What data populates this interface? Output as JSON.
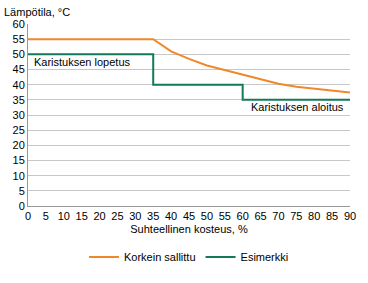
{
  "chart_data": {
    "type": "line",
    "x_label": "Suhteellinen kosteus, %",
    "y_label": "Lämpötila, °C",
    "series": [
      {
        "name": "Korkein sallittu",
        "color": "#f0882a",
        "line_style": "solid",
        "x": [
          0,
          5,
          10,
          15,
          20,
          25,
          30,
          35,
          40,
          45,
          50,
          55,
          60,
          65,
          70,
          75,
          80,
          85,
          90
        ],
        "values": [
          55,
          55,
          55,
          55,
          55,
          55,
          55,
          55,
          51,
          48.5,
          46.3,
          44.8,
          43.2,
          41.8,
          40.3,
          39.3,
          38.6,
          38,
          37.4
        ]
      },
      {
        "name": "Esimerkki",
        "color": "#13795b",
        "line_style": "solid",
        "x": [
          0,
          35,
          35,
          60,
          60,
          90
        ],
        "values": [
          50,
          50,
          40,
          40,
          35,
          35
        ]
      }
    ],
    "annotations": [
      {
        "text": "Karistuksen lopetus",
        "x": 1,
        "y": 47.5
      },
      {
        "text": "Karistuksen aloitus",
        "x": 89,
        "y": 32.5
      }
    ],
    "xlim": [
      0,
      90
    ],
    "xticks": [
      0,
      5,
      10,
      15,
      20,
      25,
      30,
      35,
      40,
      45,
      50,
      55,
      60,
      65,
      70,
      75,
      80,
      85,
      90
    ],
    "ylim": [
      0,
      60
    ],
    "yticks": [
      0,
      5,
      10,
      15,
      20,
      25,
      30,
      35,
      40,
      45,
      50,
      55,
      60
    ],
    "grid": true,
    "legend": "bottom"
  }
}
